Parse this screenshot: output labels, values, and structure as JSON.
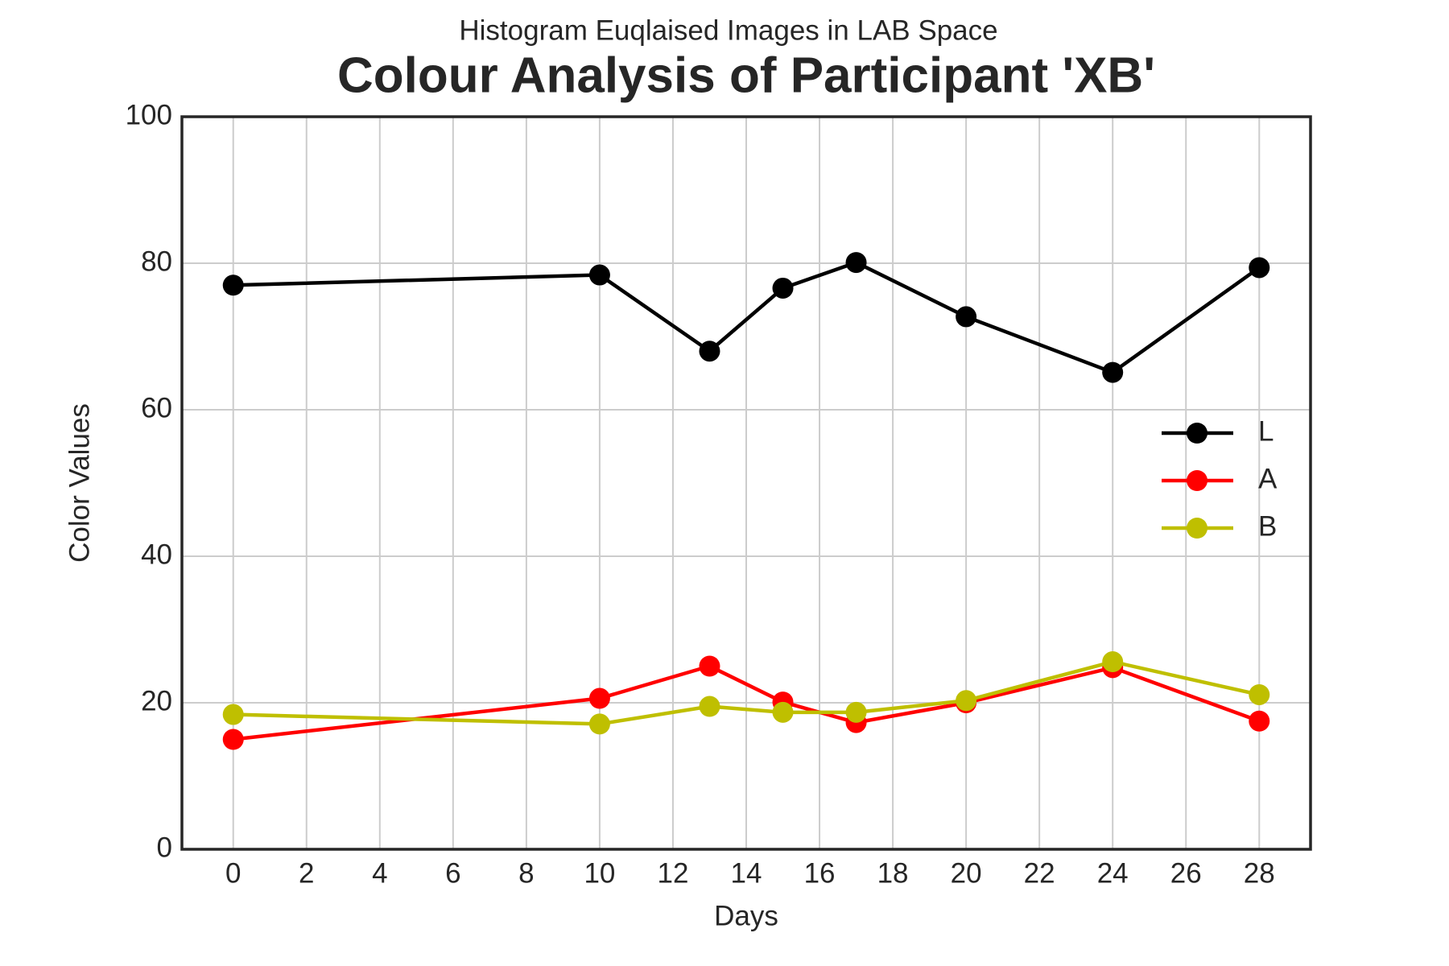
{
  "chart_data": {
    "type": "line",
    "subtitle": "Histogram Euqlaised Images in LAB Space",
    "title": "Colour Analysis of Participant 'XB'",
    "x_label": "Days",
    "y_label": "Color Values",
    "x": [
      0,
      10,
      13,
      15,
      17,
      20,
      24,
      28
    ],
    "series": [
      {
        "name": "L",
        "color": "#000000",
        "values": [
          77,
          78.4,
          68,
          76.6,
          80.1,
          72.7,
          65.1,
          79.4
        ]
      },
      {
        "name": "A",
        "color": "#ff0000",
        "values": [
          15,
          20.6,
          25,
          20.1,
          17.3,
          20,
          24.8,
          17.5
        ]
      },
      {
        "name": "B",
        "color": "#bfbf00",
        "values": [
          18.4,
          17.1,
          19.5,
          18.7,
          18.7,
          20.3,
          25.6,
          21.1
        ]
      }
    ],
    "xlim": [
      -1.4,
      29.4
    ],
    "xticks": [
      0,
      2,
      4,
      6,
      8,
      10,
      12,
      14,
      16,
      18,
      20,
      22,
      24,
      26,
      28
    ],
    "ylim": [
      0,
      100
    ],
    "yticks": [
      0,
      20,
      40,
      60,
      80,
      100
    ],
    "grid": true,
    "legend": "right"
  }
}
